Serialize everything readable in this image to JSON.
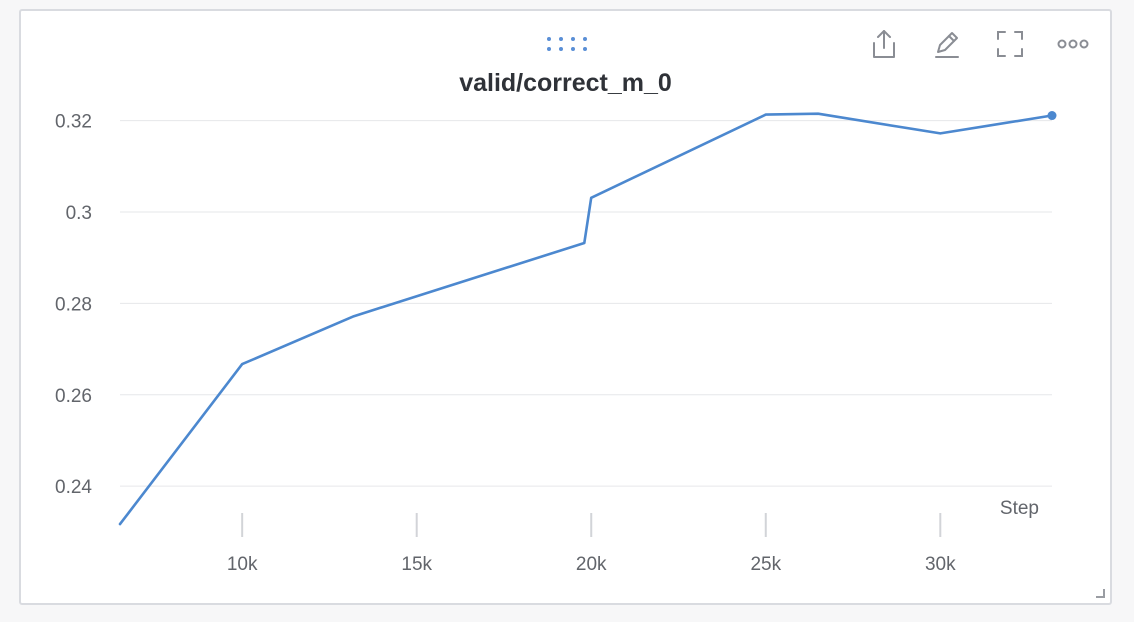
{
  "chart_data": {
    "type": "line",
    "title": "valid/correct_m_0",
    "xlabel": "Step",
    "ylabel": "",
    "xlim": [
      6500,
      33200
    ],
    "ylim": [
      0.2315,
      0.3245
    ],
    "x_ticks": [
      10000,
      15000,
      20000,
      25000,
      30000
    ],
    "x_tick_labels": [
      "10k",
      "15k",
      "20k",
      "25k",
      "30k"
    ],
    "y_ticks": [
      0.24,
      0.26,
      0.28,
      0.3,
      0.32
    ],
    "y_tick_labels": [
      "0.24",
      "0.26",
      "0.28",
      "0.3",
      "0.32"
    ],
    "grid": true,
    "series": [
      {
        "color": "#4c88cf",
        "x": [
          6500,
          10000,
          13200,
          19800,
          20000,
          25000,
          26500,
          30000,
          33200
        ],
        "y": [
          0.2317,
          0.2667,
          0.2772,
          0.2932,
          0.3031,
          0.3213,
          0.3215,
          0.3172,
          0.3211
        ]
      }
    ]
  },
  "toolbar": {
    "icons": [
      "share-icon",
      "edit-icon",
      "fullscreen-icon",
      "more-options-icon"
    ]
  }
}
